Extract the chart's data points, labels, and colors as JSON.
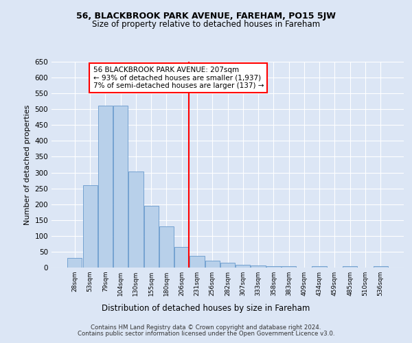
{
  "title1": "56, BLACKBROOK PARK AVENUE, FAREHAM, PO15 5JW",
  "title2": "Size of property relative to detached houses in Fareham",
  "xlabel": "Distribution of detached houses by size in Fareham",
  "ylabel": "Number of detached properties",
  "categories": [
    "28sqm",
    "53sqm",
    "79sqm",
    "104sqm",
    "130sqm",
    "155sqm",
    "180sqm",
    "206sqm",
    "231sqm",
    "256sqm",
    "282sqm",
    "307sqm",
    "333sqm",
    "358sqm",
    "383sqm",
    "409sqm",
    "434sqm",
    "459sqm",
    "485sqm",
    "510sqm",
    "536sqm"
  ],
  "values": [
    30,
    260,
    512,
    512,
    303,
    196,
    130,
    64,
    37,
    22,
    15,
    9,
    6,
    5,
    5,
    0,
    5,
    0,
    5,
    0,
    5
  ],
  "bar_color": "#b8d0ea",
  "bar_edge_color": "#6699cc",
  "vline_x_index": 7,
  "vline_color": "red",
  "annotation_text": "56 BLACKBROOK PARK AVENUE: 207sqm\n← 93% of detached houses are smaller (1,937)\n7% of semi-detached houses are larger (137) →",
  "annotation_box_color": "white",
  "annotation_box_edge_color": "red",
  "footer1": "Contains HM Land Registry data © Crown copyright and database right 2024.",
  "footer2": "Contains public sector information licensed under the Open Government Licence v3.0.",
  "bg_color": "#dce6f5",
  "plot_bg_color": "#dce6f5",
  "ylim": [
    0,
    650
  ],
  "yticks": [
    0,
    50,
    100,
    150,
    200,
    250,
    300,
    350,
    400,
    450,
    500,
    550,
    600,
    650
  ]
}
